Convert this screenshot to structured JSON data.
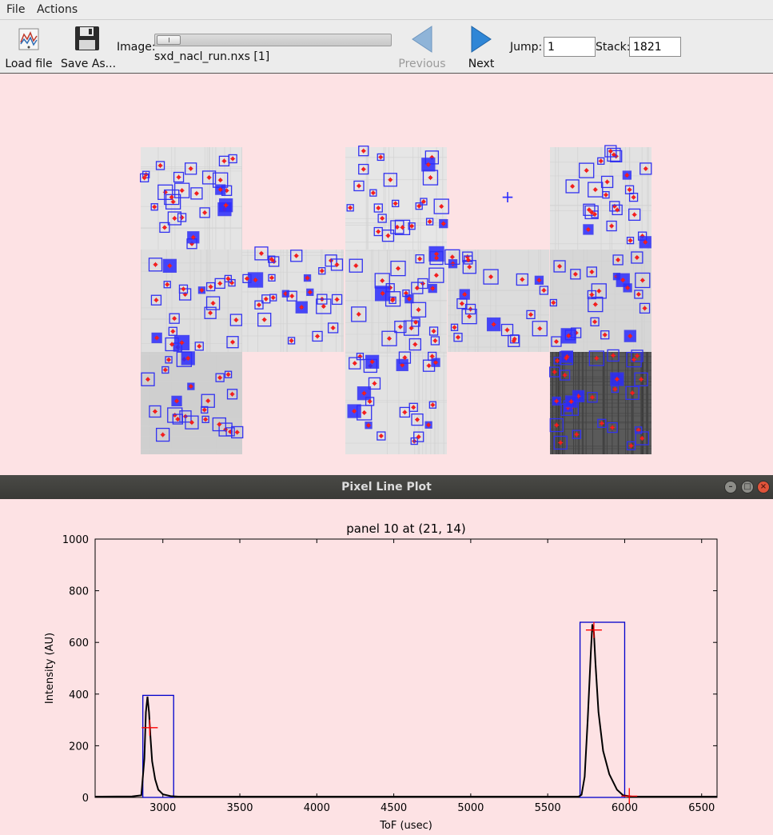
{
  "menu": {
    "file": "File",
    "actions": "Actions"
  },
  "toolbar": {
    "load_file": "Load file",
    "save_as": "Save As...",
    "image_label": "Image:",
    "image_name": "sxd_nacl_run.nxs [1]",
    "previous": "Previous",
    "next": "Next",
    "jump_label": "Jump:",
    "jump_value": "1",
    "stack_label": "Stack:",
    "stack_value": "1821"
  },
  "plot_window": {
    "title": "Pixel Line Plot",
    "minimize": "–",
    "maximize": "□",
    "close": "×"
  },
  "chart_data": {
    "type": "line",
    "title": "panel 10 at (21, 14)",
    "xlabel": "ToF (usec)",
    "ylabel": "Intensity (AU)",
    "xlim": [
      2560,
      6600
    ],
    "ylim": [
      0,
      1000
    ],
    "xticks": [
      3000,
      3500,
      4000,
      4500,
      5000,
      5500,
      6000,
      6500
    ],
    "yticks": [
      0,
      200,
      400,
      600,
      800,
      1000
    ],
    "grid": false,
    "line_color": "#000000",
    "box_color": "#0000cc",
    "marker_color": "#ff0000",
    "series": [
      {
        "x": [
          2560,
          2800,
          2860,
          2880,
          2890,
          2900,
          2910,
          2920,
          2930,
          2950,
          2970,
          3000,
          3050,
          3100,
          5700,
          5720,
          5740,
          5760,
          5780,
          5790,
          5800,
          5810,
          5830,
          5860,
          5900,
          5950,
          5990,
          6050,
          6600
        ],
        "y": [
          3,
          4,
          8,
          150,
          330,
          390,
          330,
          230,
          140,
          70,
          30,
          12,
          5,
          3,
          3,
          10,
          80,
          300,
          560,
          670,
          640,
          520,
          330,
          180,
          90,
          30,
          8,
          3,
          3
        ]
      }
    ],
    "boxes": [
      {
        "x0": 2870,
        "x1": 3070,
        "y0": 0,
        "y1": 395
      },
      {
        "x0": 5710,
        "x1": 6000,
        "y0": 0,
        "y1": 678
      }
    ],
    "markers": [
      {
        "x": 2915,
        "y": 270
      },
      {
        "x": 5800,
        "y": 648
      },
      {
        "x": 6030,
        "y": 5
      }
    ]
  },
  "detector_image": {
    "cursor_marker": "+",
    "panels": [
      {
        "col": 0,
        "row": 0,
        "shade": "#e4e4e4"
      },
      {
        "col": 0,
        "row": 1,
        "shade": "#dedede"
      },
      {
        "col": 0,
        "row": 2,
        "shade": "#cfcfcf"
      },
      {
        "col": 1,
        "row": 1,
        "shade": "#e2e2e2"
      },
      {
        "col": 2,
        "row": 0,
        "shade": "#e6e6e6"
      },
      {
        "col": 2,
        "row": 1,
        "shade": "#e0e0e0"
      },
      {
        "col": 2,
        "row": 2,
        "shade": "#e2e2e2"
      },
      {
        "col": 3,
        "row": 1,
        "shade": "#dcdcdc"
      },
      {
        "col": 4,
        "row": 0,
        "shade": "#e2e2e2"
      },
      {
        "col": 4,
        "row": 1,
        "shade": "#d6d6d6"
      },
      {
        "col": 4,
        "row": 2,
        "shade": "#5a5a5a"
      }
    ]
  }
}
